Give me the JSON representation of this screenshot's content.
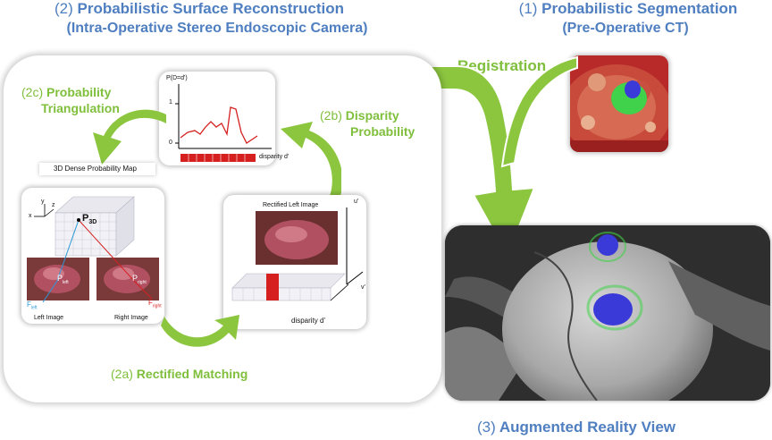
{
  "titles": {
    "surface_num": "(2)",
    "surface_text": "Probabilistic Surface Reconstruction",
    "surface_sub": "(Intra-Operative Stereo Endoscopic Camera)",
    "seg_num": "(1)",
    "seg_text": "Probabilistic Segmentation",
    "seg_sub": "(Pre-Operative CT)",
    "ar_num": "(3)",
    "ar_text": "Augmented Reality View"
  },
  "steps": {
    "registration": "Registration",
    "triang_num": "(2c)",
    "triang_line1": "Probability",
    "triang_line2": "Triangulation",
    "disp_num": "(2b)",
    "disp_line1": "Disparity",
    "disp_line2": "Probability",
    "match_num": "(2a)",
    "match_text": "Rectified Matching"
  },
  "plot": {
    "ylabel": "P(D=d')",
    "y_top": "1",
    "y_bottom": "0",
    "xlabel": "disparity d'"
  },
  "labels": {
    "dense_map": "3D Dense Probability Map",
    "p3d_main": "P",
    "p3d_sub": "3D",
    "axis_x": "x",
    "axis_y": "y",
    "axis_z": "z",
    "left_image": "Left Image",
    "right_image": "Right Image",
    "f_left_main": "F",
    "f_left_sub": "left",
    "f_right_main": "F",
    "f_right_sub": "right",
    "p_left_main": "P",
    "p_left_sub": "left",
    "p_right_main": "P",
    "p_right_sub": "right",
    "rectified_left": "Rectified Left Image",
    "u_axis": "u'",
    "v_axis": "v'",
    "disparity": "disparity d'"
  },
  "colors": {
    "title_blue": "#4f7fc0",
    "step_green": "#7fbf3c",
    "arrow_green": "#8cc63f",
    "plot_red": "#d62020",
    "ct_red": "#b82a2a",
    "seg_green": "#3fd24a",
    "seg_blue": "#3a3ad8"
  }
}
